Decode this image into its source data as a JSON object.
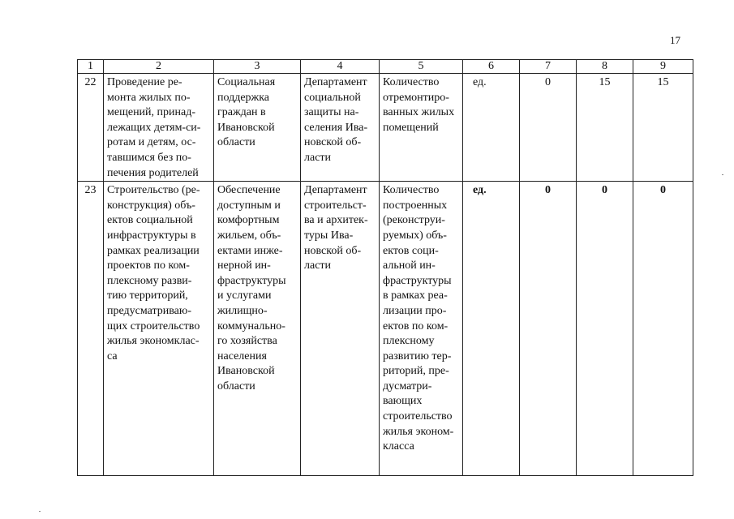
{
  "page_number": "17",
  "table": {
    "header": [
      "1",
      "2",
      "3",
      "4",
      "5",
      "6",
      "7",
      "8",
      "9"
    ],
    "rows": [
      {
        "no": "22",
        "event": "Проведение ре-\nмонта жилых по-\nмещений, принад-\nлежащих детям-си-\nротам и детям, ос-\nтавшимся без по-\nпечения родителей",
        "program": "Социальная\nподдержка\nграждан в\nИвановской\nобласти",
        "executor": "Департамент\nсоциальной\nзащиты на-\nселения Ива-\nновской об-\nласти",
        "indicator": "Количество\nотремонтиро-\nванных жилых\nпомещений",
        "unit": "ед.",
        "v7": "0",
        "v8": "15",
        "v9": "15"
      },
      {
        "no": "23",
        "event": "Строительство (ре-\nконструкция) объ-\nектов социальной\nинфраструктуры в\nрамках реализации\nпроектов по ком-\nплексному разви-\nтию территорий,\nпредусматриваю-\nщих строительство\nжилья экономклас-\nса",
        "program": "Обеспечение\nдоступным и\nкомфортным\nжильем, объ-\nектами инже-\nнерной ин-\nфраструктуры\nи услугами\nжилищно-\nкоммунально-\nго хозяйства\nнаселения\nИвановской\nобласти",
        "executor": "Департамент\nстроительст-\nва и архитек-\nтуры Ива-\nновской об-\nласти",
        "indicator": "Количество\nпостроенных\n(реконструи-\nруемых) объ-\nектов соци-\nальной ин-\nфраструктуры\nв рамках реа-\nлизации про-\nектов по ком-\nплексному\nразвитию тер-\nриторий, пре-\nдусматри-\nвающих\nстроительство\nжилья эконом-\nкласса",
        "unit": "ед.",
        "v7": "0",
        "v8": "0",
        "v9": "0"
      }
    ]
  }
}
